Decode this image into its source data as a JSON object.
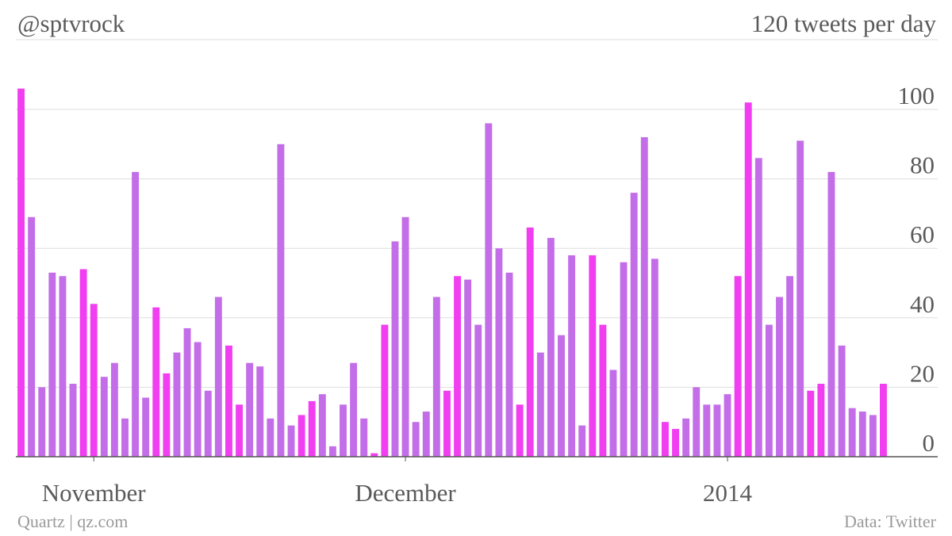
{
  "header": {
    "title": "@sptvrock",
    "subtitle": "120 tweets per day"
  },
  "footer": {
    "credit": "Quartz | qz.com",
    "source": "Data: Twitter"
  },
  "chart_data": {
    "type": "bar",
    "title": "@sptvrock",
    "subtitle": "120 tweets per day",
    "xlabel": "",
    "ylabel": "",
    "ylim": [
      0,
      100
    ],
    "y_ticks": [
      0,
      20,
      40,
      60,
      80,
      100
    ],
    "x_ticks": [
      {
        "label": "November",
        "index": 7
      },
      {
        "label": "December",
        "index": 37
      },
      {
        "label": "2014",
        "index": 68
      }
    ],
    "grid": true,
    "colors": {
      "weekday": "#c36ee8",
      "weekend": "#f13ef1",
      "axis": "#555555",
      "grid": "#dddddd"
    },
    "weekend_pattern_start": 0,
    "values": [
      106,
      69,
      20,
      53,
      52,
      21,
      54,
      44,
      23,
      27,
      11,
      82,
      17,
      43,
      24,
      30,
      37,
      33,
      19,
      46,
      32,
      15,
      27,
      26,
      11,
      90,
      9,
      12,
      16,
      18,
      3,
      15,
      27,
      11,
      1,
      38,
      62,
      69,
      10,
      13,
      46,
      19,
      52,
      51,
      38,
      96,
      60,
      53,
      15,
      66,
      30,
      63,
      35,
      58,
      9,
      58,
      38,
      25,
      56,
      76,
      92,
      57,
      10,
      8,
      11,
      20,
      15,
      15,
      18,
      52,
      102,
      86,
      38,
      46,
      52,
      91,
      19,
      21,
      82,
      32,
      14,
      13,
      12,
      21
    ]
  }
}
